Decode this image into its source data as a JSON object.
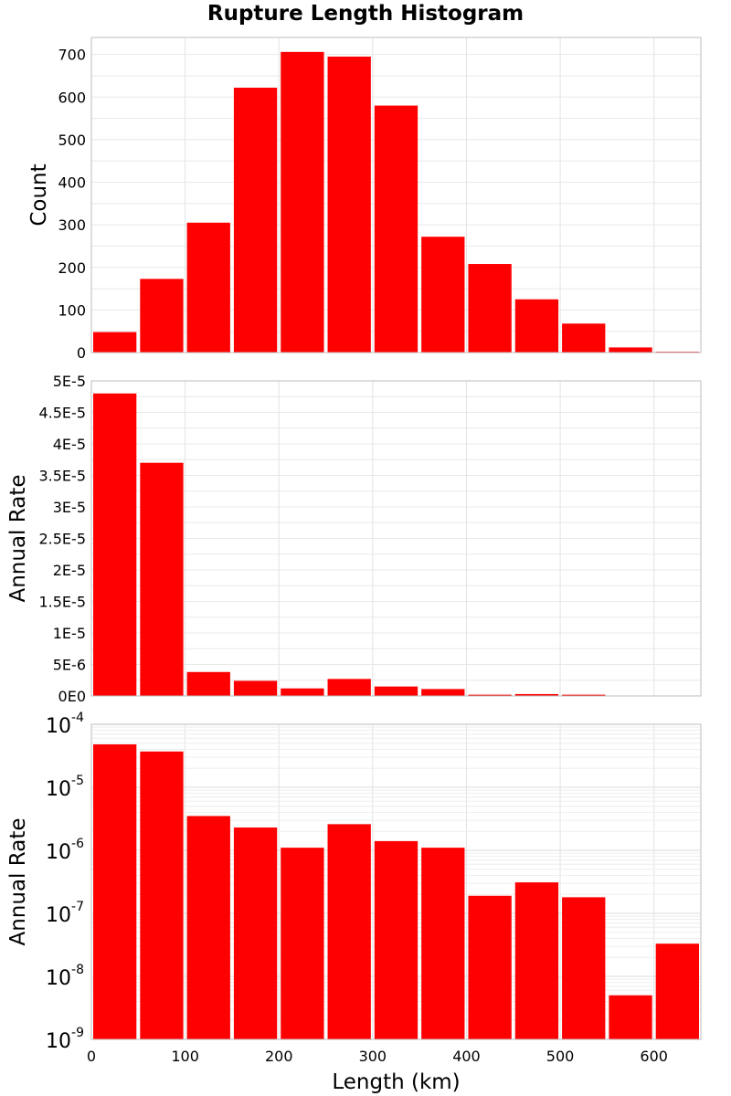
{
  "chart_data": [
    {
      "type": "bar",
      "title": "Rupture Length Histogram",
      "xlabel": "",
      "ylabel": "Count",
      "ylim": [
        0,
        740
      ],
      "y_ticks": [
        0,
        100,
        200,
        300,
        400,
        500,
        600,
        700
      ],
      "y_tick_labels": [
        "0",
        "100",
        "200",
        "300",
        "400",
        "500",
        "600",
        "700"
      ],
      "x": [
        25,
        75,
        125,
        175,
        225,
        275,
        325,
        375,
        425,
        475,
        525,
        575,
        625
      ],
      "values": [
        48,
        173,
        305,
        622,
        706,
        695,
        580,
        272,
        208,
        125,
        68,
        12,
        2
      ],
      "xlim": [
        0,
        650
      ],
      "grid": true,
      "color": "#ff0000"
    },
    {
      "type": "bar",
      "xlabel": "",
      "ylabel": "Annual Rate",
      "ylim": [
        0,
        5e-05
      ],
      "y_ticks": [
        0,
        5e-06,
        1e-05,
        1.5e-05,
        2e-05,
        2.5e-05,
        3e-05,
        3.5e-05,
        4e-05,
        4.5e-05,
        5e-05
      ],
      "y_tick_labels": [
        "0E0",
        "5E-6",
        "1E-5",
        "1.5E-5",
        "2E-5",
        "2.5E-5",
        "3E-5",
        "3.5E-5",
        "4E-5",
        "4.5E-5",
        "5E-5"
      ],
      "x": [
        25,
        75,
        125,
        175,
        225,
        275,
        325,
        375,
        425,
        475,
        525,
        575,
        625
      ],
      "values": [
        4.8e-05,
        3.7e-05,
        3.8e-06,
        2.4e-06,
        1.2e-06,
        2.7e-06,
        1.5e-06,
        1.1e-06,
        2e-07,
        3e-07,
        2e-07,
        5e-09,
        3e-08
      ],
      "xlim": [
        0,
        650
      ],
      "grid": true,
      "color": "#ff0000"
    },
    {
      "type": "bar",
      "xlabel": "Length (km)",
      "ylabel": "Annual Rate",
      "yscale": "log",
      "ylim": [
        1e-09,
        0.0001
      ],
      "y_ticks": [
        1e-09,
        1e-08,
        1e-07,
        1e-06,
        1e-05,
        0.0001
      ],
      "y_tick_base": "10",
      "y_tick_exponents": [
        "-9",
        "-8",
        "-7",
        "-6",
        "-5",
        "-4"
      ],
      "x": [
        25,
        75,
        125,
        175,
        225,
        275,
        325,
        375,
        425,
        475,
        525,
        575,
        625
      ],
      "values": [
        4.8e-05,
        3.7e-05,
        3.5e-06,
        2.3e-06,
        1.1e-06,
        2.6e-06,
        1.4e-06,
        1.1e-06,
        1.9e-07,
        3.1e-07,
        1.8e-07,
        5e-09,
        3.3e-08
      ],
      "xlim": [
        0,
        650
      ],
      "x_ticks": [
        0,
        100,
        200,
        300,
        400,
        500,
        600
      ],
      "x_tick_labels": [
        "0",
        "100",
        "200",
        "300",
        "400",
        "500",
        "600"
      ],
      "grid": true,
      "color": "#ff0000"
    }
  ]
}
